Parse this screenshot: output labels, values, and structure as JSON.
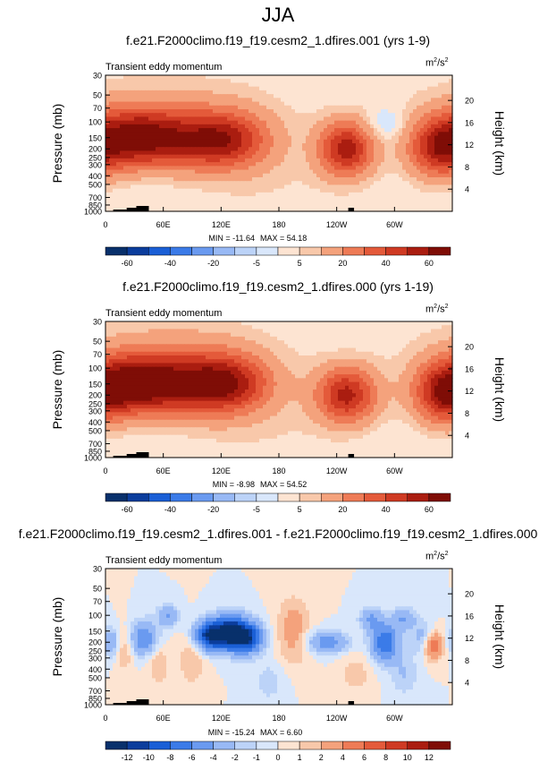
{
  "page_title": "JJA",
  "chart_data": [
    {
      "type": "heatmap",
      "title": "f.e21.F2000climo.f19_f19.cesm2_1.dfires.001 (yrs 1-9)",
      "subtitle": "Transient eddy momentum",
      "units": "m²/s²",
      "units_base": "m",
      "units_sup1": "2",
      "units_mid": "/s",
      "units_sup2": "2",
      "ylabel": "Pressure (mb)",
      "ylabel_right": "Height (km)",
      "xticks": [
        "0",
        "60E",
        "120E",
        "180",
        "120W",
        "60W"
      ],
      "xtick_lon": [
        0,
        60,
        120,
        180,
        240,
        300
      ],
      "pressure_ticks": [
        "30",
        "50",
        "70",
        "100",
        "150",
        "200",
        "250",
        "300",
        "400",
        "500",
        "700",
        "850",
        "1000"
      ],
      "pressure_values": [
        30,
        50,
        70,
        100,
        150,
        200,
        250,
        300,
        400,
        500,
        700,
        850,
        1000
      ],
      "height_ticks": [
        "20",
        "16",
        "12",
        "8",
        "4"
      ],
      "height_values": [
        20,
        16,
        12,
        8,
        4
      ],
      "min_label": "MIN = -11.64",
      "max_label": "MAX = 54.18",
      "min_value": -11.64,
      "max_value": 54.18,
      "colorbar_labels": [
        "-60",
        "-40",
        "-20",
        "-5",
        "5",
        "20",
        "40",
        "60"
      ],
      "levels": [
        -70,
        -60,
        -50,
        -40,
        -30,
        -20,
        -10,
        -5,
        0,
        5,
        10,
        20,
        30,
        40,
        50,
        60,
        70
      ],
      "blobs": [
        {
          "lon": 30,
          "p": 150,
          "dlon": 32,
          "dp": 0.55,
          "amp": 52
        },
        {
          "lon": 95,
          "p": 155,
          "dlon": 40,
          "dp": 0.55,
          "amp": 38
        },
        {
          "lon": 130,
          "p": 160,
          "dlon": 30,
          "dp": 0.5,
          "amp": 28
        },
        {
          "lon": 70,
          "p": 80,
          "dlon": 100,
          "dp": 1.0,
          "amp": 7
        },
        {
          "lon": 250,
          "p": 200,
          "dlon": 20,
          "dp": 0.5,
          "amp": 54
        },
        {
          "lon": 345,
          "p": 200,
          "dlon": 22,
          "dp": 0.55,
          "amp": 44
        },
        {
          "lon": 170,
          "p": 500,
          "dlon": 60,
          "dp": 0.8,
          "amp": 4
        },
        {
          "lon": 290,
          "p": 110,
          "dlon": 15,
          "dp": 0.3,
          "amp": -10
        },
        {
          "lon": 30,
          "p": 400,
          "dlon": 50,
          "dp": 0.4,
          "amp": -3
        }
      ]
    },
    {
      "type": "heatmap",
      "title": "f.e21.F2000climo.f19_f19.cesm2_1.dfires.000 (yrs 1-19)",
      "subtitle": "Transient eddy momentum",
      "units": "m²/s²",
      "units_base": "m",
      "units_sup1": "2",
      "units_mid": "/s",
      "units_sup2": "2",
      "ylabel": "Pressure (mb)",
      "ylabel_right": "Height (km)",
      "xticks": [
        "0",
        "60E",
        "120E",
        "180",
        "120W",
        "60W"
      ],
      "xtick_lon": [
        0,
        60,
        120,
        180,
        240,
        300
      ],
      "pressure_ticks": [
        "30",
        "50",
        "70",
        "100",
        "150",
        "200",
        "250",
        "300",
        "400",
        "500",
        "700",
        "850",
        "1000"
      ],
      "pressure_values": [
        30,
        50,
        70,
        100,
        150,
        200,
        250,
        300,
        400,
        500,
        700,
        850,
        1000
      ],
      "height_ticks": [
        "20",
        "16",
        "12",
        "8",
        "4"
      ],
      "height_values": [
        20,
        16,
        12,
        8,
        4
      ],
      "min_label": "MIN = -8.98",
      "max_label": "MAX = 54.52",
      "min_value": -8.98,
      "max_value": 54.52,
      "colorbar_labels": [
        "-60",
        "-40",
        "-20",
        "-5",
        "5",
        "20",
        "40",
        "60"
      ],
      "levels": [
        -70,
        -60,
        -50,
        -40,
        -30,
        -20,
        -10,
        -5,
        0,
        5,
        10,
        20,
        30,
        40,
        50,
        60,
        70
      ],
      "blobs": [
        {
          "lon": 30,
          "p": 150,
          "dlon": 32,
          "dp": 0.55,
          "amp": 54
        },
        {
          "lon": 90,
          "p": 145,
          "dlon": 40,
          "dp": 0.6,
          "amp": 40
        },
        {
          "lon": 130,
          "p": 150,
          "dlon": 30,
          "dp": 0.5,
          "amp": 36
        },
        {
          "lon": 70,
          "p": 80,
          "dlon": 100,
          "dp": 1.0,
          "amp": 8
        },
        {
          "lon": 250,
          "p": 200,
          "dlon": 22,
          "dp": 0.5,
          "amp": 52
        },
        {
          "lon": 350,
          "p": 200,
          "dlon": 22,
          "dp": 0.55,
          "amp": 42
        },
        {
          "lon": 170,
          "p": 500,
          "dlon": 60,
          "dp": 0.8,
          "amp": 4
        },
        {
          "lon": 30,
          "p": 400,
          "dlon": 50,
          "dp": 0.4,
          "amp": -3
        }
      ]
    },
    {
      "type": "heatmap",
      "title": "f.e21.F2000climo.f19_f19.cesm2_1.dfires.001 - f.e21.F2000climo.f19_f19.cesm2_1.dfires.000",
      "subtitle": "Transient eddy momentum",
      "units": "m²/s²",
      "units_base": "m",
      "units_sup1": "2",
      "units_mid": "/s",
      "units_sup2": "2",
      "ylabel": "Pressure (mb)",
      "ylabel_right": "Height (km)",
      "xticks": [
        "0",
        "60E",
        "120E",
        "180",
        "120W",
        "60W"
      ],
      "xtick_lon": [
        0,
        60,
        120,
        180,
        240,
        300
      ],
      "pressure_ticks": [
        "30",
        "50",
        "70",
        "100",
        "150",
        "200",
        "250",
        "300",
        "400",
        "500",
        "700",
        "850",
        "1000"
      ],
      "pressure_values": [
        30,
        50,
        70,
        100,
        150,
        200,
        250,
        300,
        400,
        500,
        700,
        850,
        1000
      ],
      "height_ticks": [
        "20",
        "16",
        "12",
        "8",
        "4"
      ],
      "height_values": [
        20,
        16,
        12,
        8,
        4
      ],
      "min_label": "MIN = -15.24",
      "max_label": "MAX = 6.60",
      "min_value": -15.24,
      "max_value": 6.6,
      "colorbar_labels": [
        "-12",
        "-10",
        "-8",
        "-6",
        "-4",
        "-2",
        "-1",
        "0",
        "1",
        "2",
        "4",
        "6",
        "8",
        "10",
        "12"
      ],
      "levels": [
        -14,
        -12,
        -10,
        -8,
        -6,
        -4,
        -2,
        -1,
        0,
        1,
        2,
        4,
        6,
        8,
        10,
        12,
        14
      ],
      "blobs": [
        {
          "lon": 130,
          "p": 160,
          "dlon": 16,
          "dp": 0.3,
          "amp": -15
        },
        {
          "lon": 105,
          "p": 170,
          "dlon": 10,
          "dp": 0.25,
          "amp": -8
        },
        {
          "lon": 150,
          "p": 190,
          "dlon": 10,
          "dp": 0.25,
          "amp": -6
        },
        {
          "lon": 40,
          "p": 180,
          "dlon": 10,
          "dp": 0.3,
          "amp": -6
        },
        {
          "lon": 65,
          "p": 100,
          "dlon": 8,
          "dp": 0.2,
          "amp": -4
        },
        {
          "lon": 5,
          "p": 200,
          "dlon": 6,
          "dp": 0.25,
          "amp": -4
        },
        {
          "lon": 230,
          "p": 200,
          "dlon": 16,
          "dp": 0.2,
          "amp": -5
        },
        {
          "lon": 290,
          "p": 200,
          "dlon": 10,
          "dp": 0.35,
          "amp": -8
        },
        {
          "lon": 275,
          "p": 110,
          "dlon": 8,
          "dp": 0.2,
          "amp": -4
        },
        {
          "lon": 310,
          "p": 110,
          "dlon": 8,
          "dp": 0.2,
          "amp": -4
        },
        {
          "lon": 330,
          "p": 180,
          "dlon": 8,
          "dp": 0.3,
          "amp": -3
        },
        {
          "lon": 340,
          "p": 220,
          "dlon": 7,
          "dp": 0.25,
          "amp": 6
        },
        {
          "lon": 195,
          "p": 150,
          "dlon": 12,
          "dp": 0.6,
          "amp": 3
        },
        {
          "lon": 90,
          "p": 300,
          "dlon": 10,
          "dp": 0.5,
          "amp": 2
        },
        {
          "lon": 55,
          "p": 350,
          "dlon": 8,
          "dp": 0.4,
          "amp": 2
        },
        {
          "lon": 20,
          "p": 250,
          "dlon": 6,
          "dp": 0.4,
          "amp": 2
        },
        {
          "lon": 260,
          "p": 450,
          "dlon": 12,
          "dp": 0.4,
          "amp": 1.5
        },
        {
          "lon": 170,
          "p": 550,
          "dlon": 12,
          "dp": 0.4,
          "amp": -1.5
        },
        {
          "lon": 310,
          "p": 450,
          "dlon": 10,
          "dp": 0.4,
          "amp": -2
        }
      ]
    }
  ],
  "palette": [
    "#08306b",
    "#0b3d9c",
    "#1a5fd6",
    "#3b7be8",
    "#6a9af0",
    "#98b9f5",
    "#bcd3f8",
    "#d9e7fb",
    "#fde4d2",
    "#f8c8aa",
    "#f4a27c",
    "#ee7b56",
    "#e45a3a",
    "#cf3a23",
    "#aa1d10",
    "#7f0d06"
  ]
}
